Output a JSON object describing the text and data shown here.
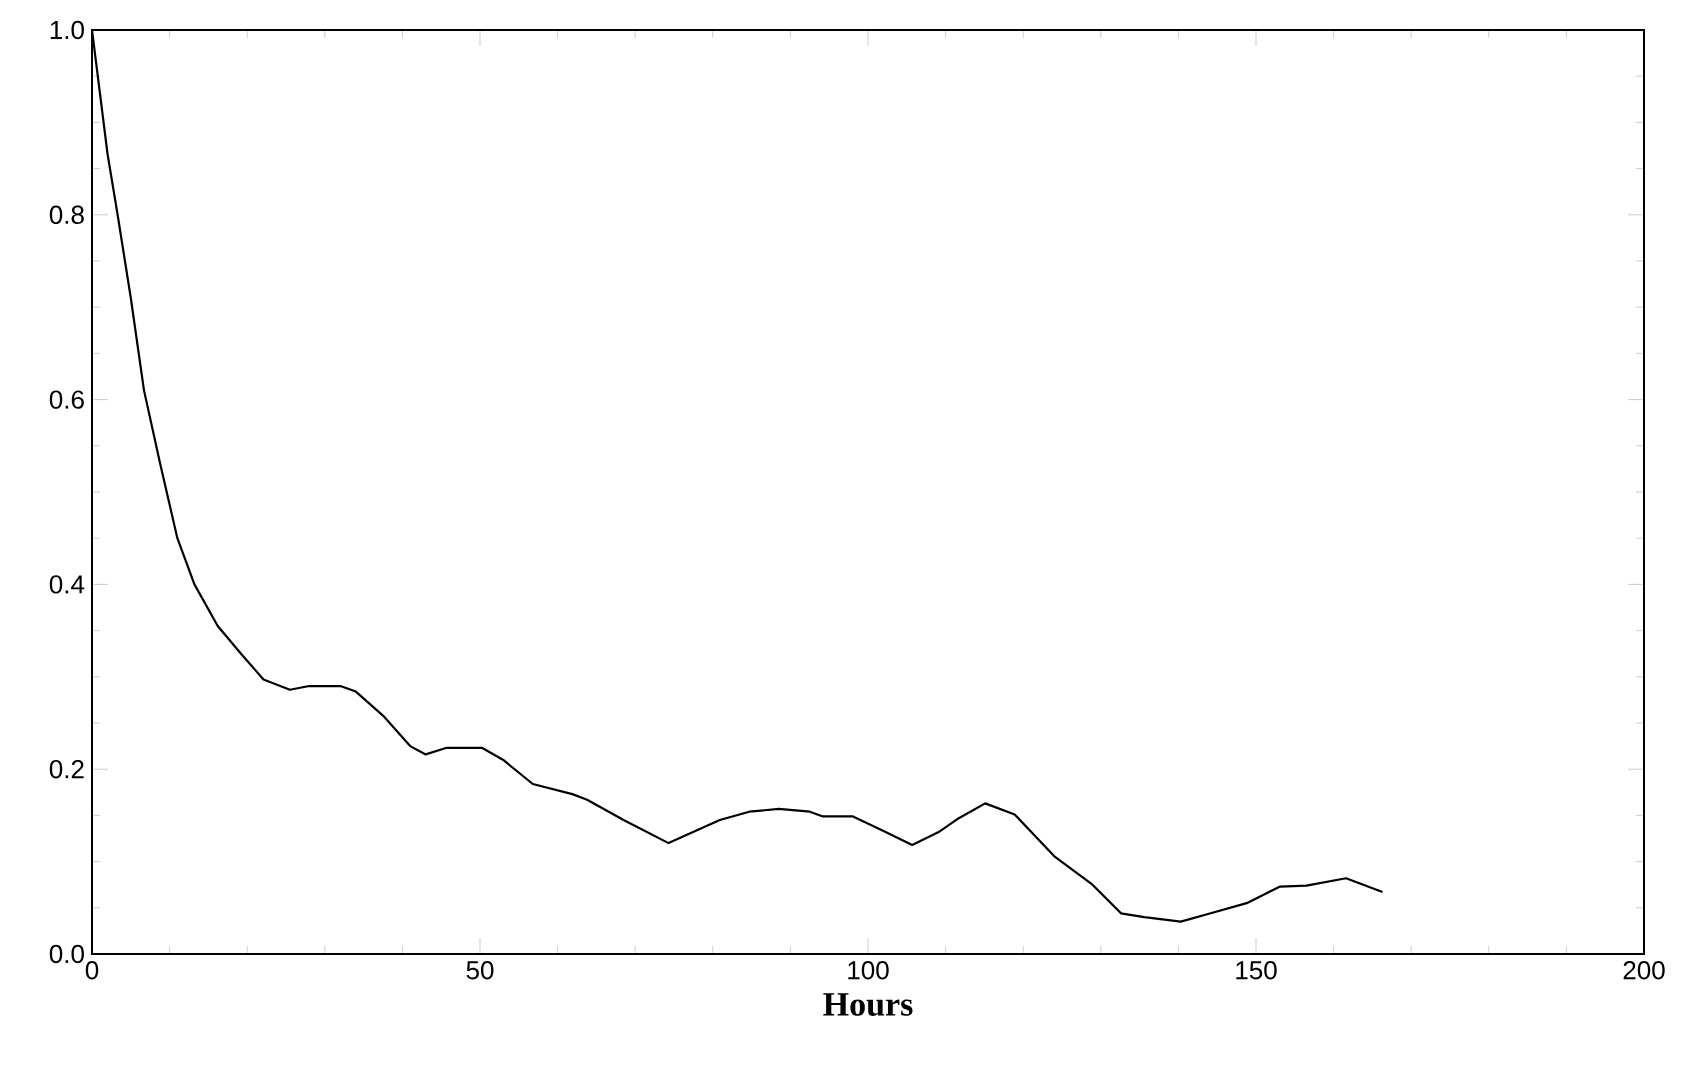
{
  "chart_data": {
    "type": "line",
    "xlabel": "Hours",
    "xlim": [
      0,
      200
    ],
    "ylim": [
      0,
      1
    ],
    "xticks": [
      0,
      50,
      100,
      150,
      200
    ],
    "yticks": [
      {
        "value": 0,
        "label": "0.0"
      },
      {
        "value": 0.2,
        "label": "0.2"
      },
      {
        "value": 0.4,
        "label": "0.4"
      },
      {
        "value": 0.6,
        "label": "0.6"
      },
      {
        "value": 0.8,
        "label": "0.8"
      },
      {
        "value": 1,
        "label": "1.0"
      }
    ],
    "grid": false,
    "marker": "none",
    "line_style": "solid",
    "series": [
      {
        "color": "#000000",
        "x": [
          0,
          2,
          3.3,
          5,
          6.7,
          8.8,
          11,
          13.2,
          16.2,
          19.2,
          22.1,
          25.5,
          28,
          32,
          34,
          37.5,
          41,
          43,
          45.6,
          50.3,
          53,
          56.8,
          61.9,
          63.8,
          68.5,
          74.3,
          80.9,
          84.7,
          88.5,
          92.5,
          94.1,
          98,
          101.8,
          105.7,
          109.1,
          111.7,
          115.1,
          118.9,
          124.1,
          128.8,
          132.6,
          135.6,
          140.3,
          143.7,
          148.8,
          153.1,
          156.5,
          161.6,
          166.3
        ],
        "values": [
          1.0,
          0.866,
          0.8,
          0.71,
          0.61,
          0.53,
          0.45,
          0.4,
          0.355,
          0.325,
          0.297,
          0.286,
          0.29,
          0.29,
          0.284,
          0.258,
          0.225,
          0.216,
          0.223,
          0.223,
          0.21,
          0.184,
          0.173,
          0.167,
          0.145,
          0.12,
          0.145,
          0.154,
          0.157,
          0.154,
          0.149,
          0.149,
          0.134,
          0.118,
          0.132,
          0.147,
          0.163,
          0.151,
          0.105,
          0.076,
          0.044,
          0.04,
          0.035,
          0.043,
          0.055,
          0.073,
          0.074,
          0.082,
          0.067
        ]
      }
    ]
  }
}
